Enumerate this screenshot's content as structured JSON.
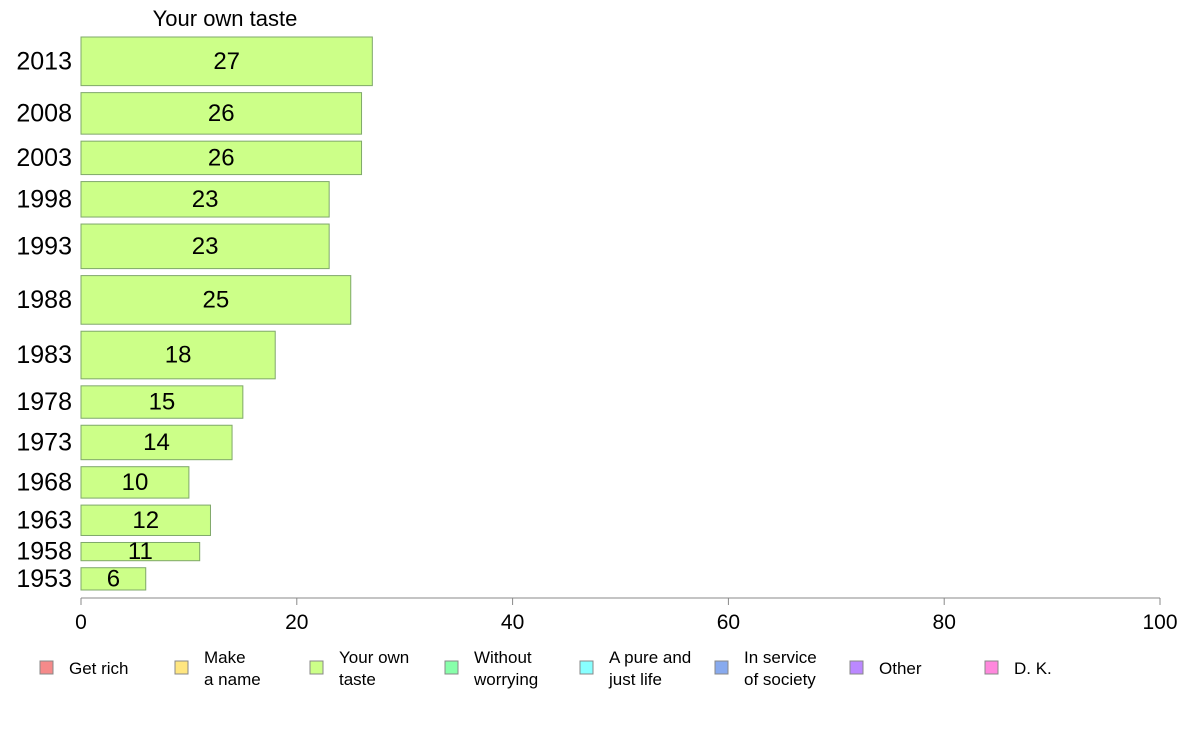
{
  "chart_data": {
    "type": "bar",
    "orientation": "horizontal",
    "title": "Your own taste",
    "xlabel": "",
    "ylabel": "",
    "xlim": [
      0,
      100
    ],
    "x_ticks": [
      0,
      20,
      40,
      60,
      80,
      100
    ],
    "grid": false,
    "legend_placement": "bottom",
    "categories": [
      "2013",
      "2008",
      "2003",
      "1998",
      "1993",
      "1988",
      "1983",
      "1978",
      "1973",
      "1968",
      "1963",
      "1958",
      "1953"
    ],
    "bar_thickness_relative": [
      48,
      41,
      33,
      35,
      44,
      48,
      47,
      32,
      34,
      31,
      30,
      18,
      22
    ],
    "series": [
      {
        "name": "Your own taste",
        "color": "#ccff88",
        "values": [
          27,
          26,
          26,
          23,
          23,
          25,
          18,
          15,
          14,
          10,
          12,
          11,
          6
        ]
      }
    ],
    "legend": [
      {
        "lines": [
          "Get rich"
        ],
        "color": "#f58a8a"
      },
      {
        "lines": [
          "Make",
          "a name"
        ],
        "color": "#ffe680"
      },
      {
        "lines": [
          "Your own",
          "taste"
        ],
        "color": "#ccff88"
      },
      {
        "lines": [
          "Without",
          "worrying"
        ],
        "color": "#88ffaa"
      },
      {
        "lines": [
          "A pure and",
          "just life"
        ],
        "color": "#88ffff"
      },
      {
        "lines": [
          "In service",
          "of society"
        ],
        "color": "#88aaee"
      },
      {
        "lines": [
          "Other"
        ],
        "color": "#bb88ff"
      },
      {
        "lines": [
          "D. K."
        ],
        "color": "#ff88dd"
      }
    ]
  }
}
